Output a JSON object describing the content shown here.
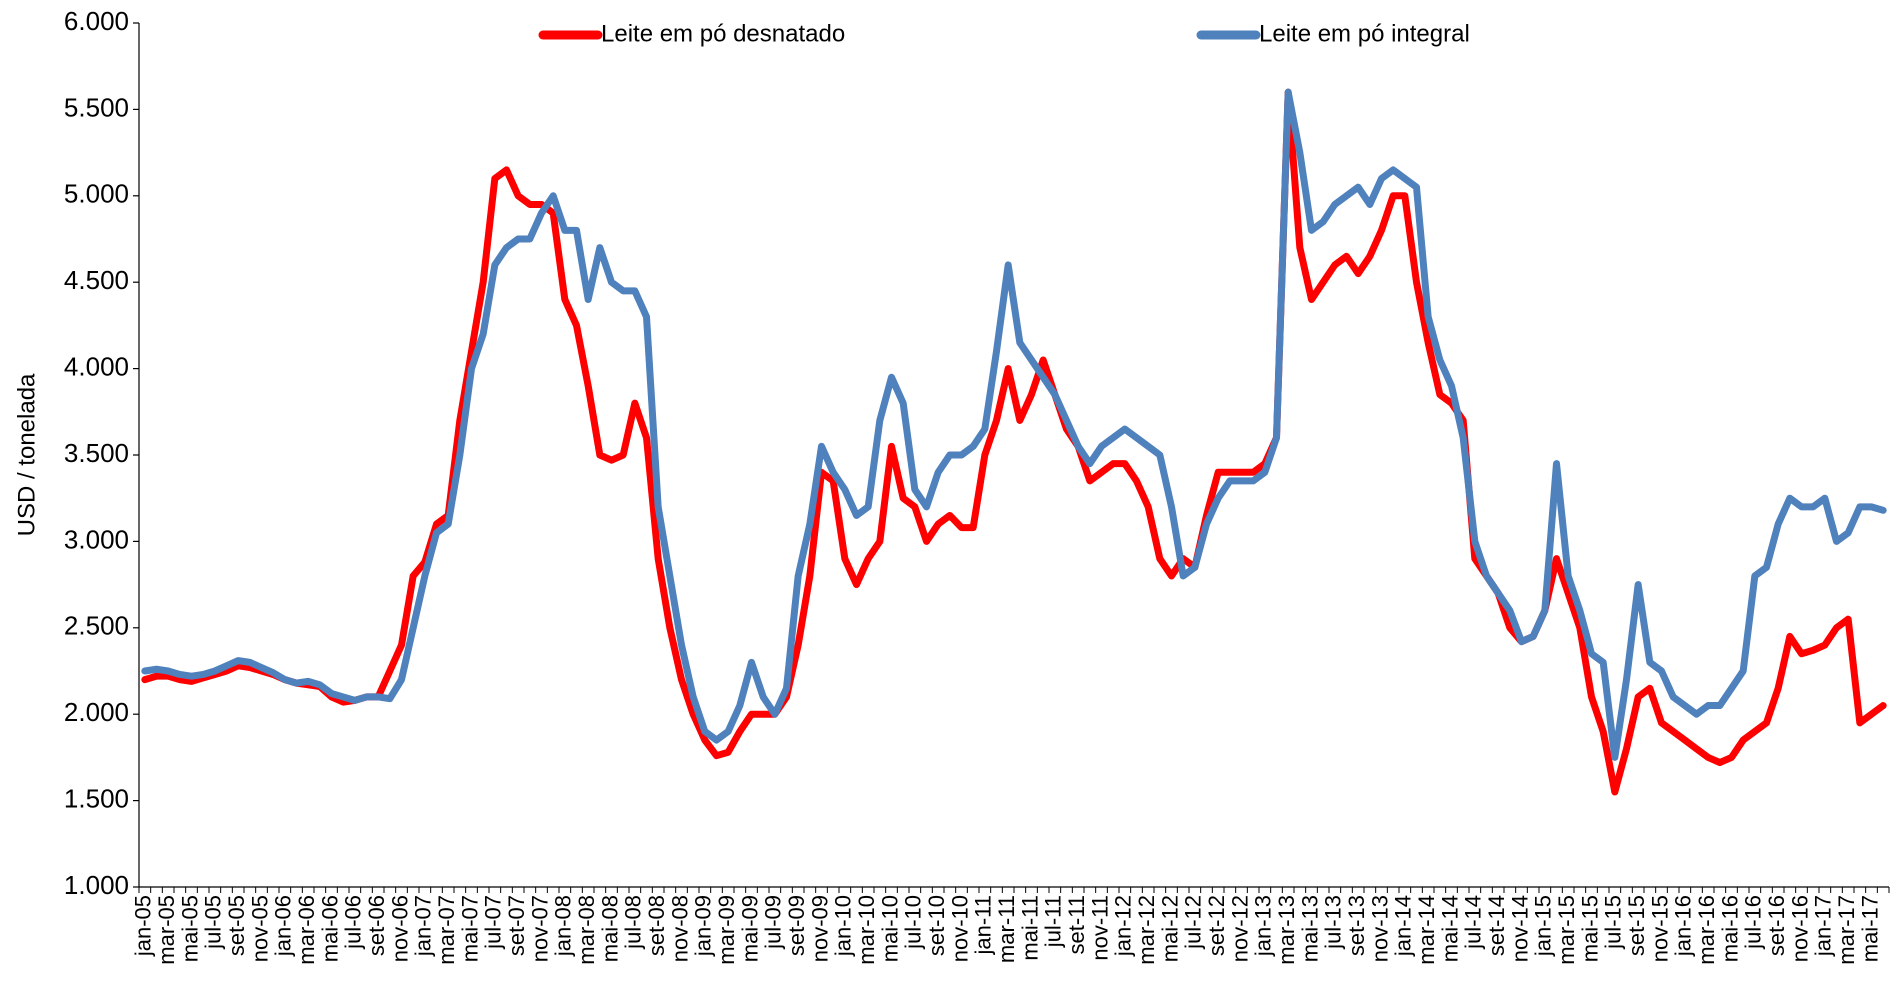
{
  "chart_data": {
    "type": "line",
    "y_label": "USD / tonelada",
    "categories": [
      "jan-05",
      null,
      "mar-05",
      null,
      "mai-05",
      null,
      "jul-05",
      null,
      "set-05",
      null,
      "nov-05",
      null,
      "jan-06",
      null,
      "mar-06",
      null,
      "mai-06",
      null,
      "jul-06",
      null,
      "set-06",
      null,
      "nov-06",
      null,
      "jan-07",
      null,
      "mar-07",
      null,
      "mai-07",
      null,
      "jul-07",
      null,
      "set-07",
      null,
      "nov-07",
      null,
      "jan-08",
      null,
      "mar-08",
      null,
      "mai-08",
      null,
      "jul-08",
      null,
      "set-08",
      null,
      "nov-08",
      null,
      "jan-09",
      null,
      "mar-09",
      null,
      "mai-09",
      null,
      "jul-09",
      null,
      "set-09",
      null,
      "nov-09",
      null,
      "jan-10",
      null,
      "mar-10",
      null,
      "mai-10",
      null,
      "jul-10",
      null,
      "set-10",
      null,
      "nov-10",
      null,
      "jan-11",
      null,
      "mar-11",
      null,
      "mai-11",
      null,
      "jul-11",
      null,
      "set-11",
      null,
      "nov-11",
      null,
      "jan-12",
      null,
      "mar-12",
      null,
      "mai-12",
      null,
      "jul-12",
      null,
      "set-12",
      null,
      "nov-12",
      null,
      "jan-13",
      null,
      "mar-13",
      null,
      "mai-13",
      null,
      "jul-13",
      null,
      "set-13",
      null,
      "nov-13",
      null,
      "jan-14",
      null,
      "mar-14",
      null,
      "mai-14",
      null,
      "jul-14",
      null,
      "set-14",
      null,
      "nov-14",
      null,
      "jan-15",
      null,
      "mar-15",
      null,
      "mai-15",
      null,
      "jul-15",
      null,
      "set-15",
      null,
      "nov-15",
      null,
      "jan-16",
      null,
      "mar-16",
      null,
      "mai-16",
      null,
      "jul-16",
      null,
      "set-16",
      null,
      "nov-16",
      null,
      "jan-17",
      null,
      "mar-17",
      null,
      "mai-17",
      null
    ],
    "series": [
      {
        "name": "Leite em pó desnatado",
        "color": "#ff0000",
        "values": [
          2200,
          2220,
          2220,
          2200,
          2190,
          2210,
          2230,
          2250,
          2280,
          2270,
          2250,
          2230,
          2200,
          2180,
          2170,
          2160,
          2100,
          2070,
          2080,
          2100,
          2100,
          2250,
          2400,
          2800,
          2880,
          3100,
          3150,
          3700,
          4100,
          4500,
          5100,
          5150,
          5000,
          4950,
          4950,
          4900,
          4400,
          4250,
          3900,
          3500,
          3470,
          3500,
          3800,
          3600,
          2900,
          2500,
          2200,
          2000,
          1850,
          1760,
          1780,
          1900,
          2000,
          2000,
          2000,
          2100,
          2400,
          2800,
          3400,
          3350,
          2900,
          2750,
          2900,
          3000,
          3550,
          3250,
          3200,
          3000,
          3100,
          3150,
          3080,
          3080,
          3500,
          3700,
          4000,
          3700,
          3850,
          4050,
          3850,
          3650,
          3550,
          3350,
          3400,
          3450,
          3450,
          3350,
          3200,
          2900,
          2800,
          2900,
          2850,
          3150,
          3400,
          3400,
          3400,
          3400,
          3450,
          3600,
          5600,
          4700,
          4400,
          4500,
          4600,
          4650,
          4550,
          4650,
          4800,
          5000,
          5000,
          4500,
          4150,
          3850,
          3800,
          3700,
          2900,
          2800,
          2700,
          2500,
          2420,
          2450,
          2600,
          2900,
          2700,
          2500,
          2100,
          1900,
          1550,
          1800,
          2100,
          2150,
          1950,
          1900,
          1850,
          1800,
          1750,
          1720,
          1750,
          1850,
          1900,
          1950,
          2150,
          2450,
          2350,
          2370,
          2400,
          2500,
          2550,
          1950,
          2000,
          2050
        ]
      },
      {
        "name": "Leite em pó integral",
        "color": "#4f81bd",
        "values": [
          2250,
          2260,
          2250,
          2230,
          2220,
          2230,
          2250,
          2280,
          2310,
          2300,
          2270,
          2240,
          2200,
          2180,
          2190,
          2170,
          2120,
          2100,
          2080,
          2100,
          2100,
          2090,
          2200,
          2500,
          2800,
          3050,
          3100,
          3500,
          4000,
          4200,
          4600,
          4700,
          4750,
          4750,
          4900,
          5000,
          4800,
          4800,
          4400,
          4700,
          4500,
          4450,
          4450,
          4300,
          3200,
          2800,
          2400,
          2100,
          1900,
          1850,
          1900,
          2050,
          2300,
          2100,
          2000,
          2150,
          2800,
          3100,
          3550,
          3400,
          3300,
          3150,
          3200,
          3700,
          3950,
          3800,
          3300,
          3200,
          3400,
          3500,
          3500,
          3550,
          3650,
          4100,
          4600,
          4150,
          4050,
          3950,
          3850,
          3700,
          3550,
          3450,
          3550,
          3600,
          3650,
          3600,
          3550,
          3500,
          3200,
          2800,
          2850,
          3100,
          3250,
          3350,
          3350,
          3350,
          3400,
          3600,
          5600,
          5250,
          4800,
          4850,
          4950,
          5000,
          5050,
          4950,
          5100,
          5150,
          5100,
          5050,
          4300,
          4050,
          3900,
          3600,
          3000,
          2800,
          2700,
          2600,
          2420,
          2450,
          2600,
          3450,
          2800,
          2600,
          2350,
          2300,
          1750,
          2200,
          2750,
          2300,
          2250,
          2100,
          2050,
          2000,
          2050,
          2050,
          2150,
          2250,
          2800,
          2850,
          3100,
          3250,
          3200,
          3200,
          3250,
          3000,
          3050,
          3200,
          3200,
          3180
        ]
      }
    ],
    "ylim": [
      1000,
      6000
    ],
    "yticks": [
      {
        "value": 1000,
        "label": "1.000"
      },
      {
        "value": 1500,
        "label": "1.500"
      },
      {
        "value": 2000,
        "label": "2.000"
      },
      {
        "value": 2500,
        "label": "2.500"
      },
      {
        "value": 3000,
        "label": "3.000"
      },
      {
        "value": 3500,
        "label": "3.500"
      },
      {
        "value": 4000,
        "label": "4.000"
      },
      {
        "value": 4500,
        "label": "4.500"
      },
      {
        "value": 5000,
        "label": "5.000"
      },
      {
        "value": 5500,
        "label": "5.500"
      },
      {
        "value": 6000,
        "label": "6.000"
      }
    ],
    "legend": "top",
    "grid": false
  }
}
